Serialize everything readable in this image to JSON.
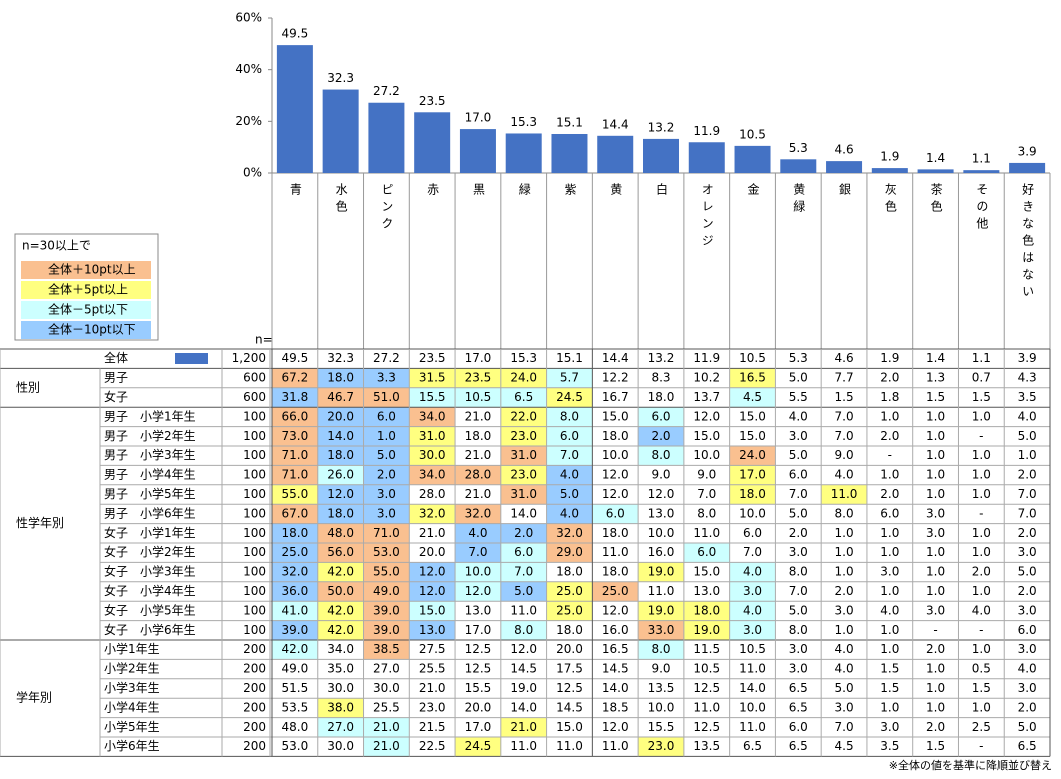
{
  "chart_data": {
    "type": "bar",
    "categories": [
      "青",
      "水色",
      "ピンク",
      "赤",
      "黒",
      "緑",
      "紫",
      "黄",
      "白",
      "オレンジ",
      "金",
      "黄緑",
      "銀",
      "灰色",
      "茶色",
      "その他",
      "好きな色はない"
    ],
    "values": [
      49.5,
      32.3,
      27.2,
      23.5,
      17.0,
      15.3,
      15.1,
      14.4,
      13.2,
      11.9,
      10.5,
      5.3,
      4.6,
      1.9,
      1.4,
      1.1,
      3.9
    ],
    "value_labels": [
      "49.5",
      "32.3",
      "27.2",
      "23.5",
      "17.0",
      "15.3",
      "15.1",
      "14.4",
      "13.2",
      "11.9",
      "10.5",
      "5.3",
      "4.6",
      "1.9",
      "1.4",
      "1.1",
      "3.9"
    ],
    "color": "#4472c4",
    "ylim": [
      0,
      60
    ],
    "yticks": [
      {
        "value": 0,
        "label": "0%"
      },
      {
        "value": 20,
        "label": "20%"
      },
      {
        "value": 40,
        "label": "40%"
      },
      {
        "value": 60,
        "label": "60%"
      }
    ]
  },
  "legend": {
    "title": "n=30以上で",
    "items": [
      {
        "label": "全体＋10pt以上",
        "color": "#fac090"
      },
      {
        "label": "全体＋5pt以上",
        "color": "#ffff80"
      },
      {
        "label": "全体－5pt以下",
        "color": "#ccffff"
      },
      {
        "label": "全体－10pt以下",
        "color": "#99ccff"
      }
    ]
  },
  "table": {
    "n_header": "n=",
    "overall": {
      "label": "全体",
      "n": "1,200",
      "cells": [
        "49.5",
        "32.3",
        "27.2",
        "23.5",
        "17.0",
        "15.3",
        "15.1",
        "14.4",
        "13.2",
        "11.9",
        "10.5",
        "5.3",
        "4.6",
        "1.9",
        "1.4",
        "1.1",
        "3.9"
      ]
    },
    "groups": [
      {
        "label": "性別",
        "rows": [
          {
            "label": "男子",
            "n": "600",
            "cells": [
              "67.2",
              "18.0",
              "3.3",
              "31.5",
              "23.5",
              "24.0",
              "5.7",
              "12.2",
              "8.3",
              "10.2",
              "16.5",
              "5.0",
              "7.7",
              "2.0",
              "1.3",
              "0.7",
              "4.3"
            ],
            "levels": [
              0,
              3,
              3,
              1,
              1,
              1,
              2,
              null,
              null,
              null,
              1,
              null,
              null,
              null,
              null,
              null,
              null
            ]
          },
          {
            "label": "女子",
            "n": "600",
            "cells": [
              "31.8",
              "46.7",
              "51.0",
              "15.5",
              "10.5",
              "6.5",
              "24.5",
              "16.7",
              "18.0",
              "13.7",
              "4.5",
              "5.5",
              "1.5",
              "1.8",
              "1.5",
              "1.5",
              "3.5"
            ],
            "levels": [
              3,
              0,
              0,
              2,
              2,
              2,
              1,
              null,
              null,
              null,
              2,
              null,
              null,
              null,
              null,
              null,
              null
            ]
          }
        ]
      },
      {
        "label": "性学年別",
        "rows": [
          {
            "label": "男子　小学1年生",
            "n": "100",
            "cells": [
              "66.0",
              "20.0",
              "6.0",
              "34.0",
              "21.0",
              "22.0",
              "8.0",
              "15.0",
              "6.0",
              "12.0",
              "15.0",
              "4.0",
              "7.0",
              "1.0",
              "1.0",
              "1.0",
              "4.0"
            ],
            "levels": [
              0,
              3,
              3,
              0,
              null,
              1,
              2,
              null,
              2,
              null,
              null,
              null,
              null,
              null,
              null,
              null,
              null
            ]
          },
          {
            "label": "男子　小学2年生",
            "n": "100",
            "cells": [
              "73.0",
              "14.0",
              "1.0",
              "31.0",
              "18.0",
              "23.0",
              "6.0",
              "18.0",
              "2.0",
              "15.0",
              "15.0",
              "3.0",
              "7.0",
              "2.0",
              "1.0",
              "-",
              "5.0"
            ],
            "levels": [
              0,
              3,
              3,
              1,
              null,
              1,
              2,
              null,
              3,
              null,
              null,
              null,
              null,
              null,
              null,
              null,
              null
            ]
          },
          {
            "label": "男子　小学3年生",
            "n": "100",
            "cells": [
              "71.0",
              "18.0",
              "5.0",
              "30.0",
              "21.0",
              "31.0",
              "7.0",
              "10.0",
              "8.0",
              "10.0",
              "24.0",
              "5.0",
              "9.0",
              "-",
              "1.0",
              "1.0",
              "1.0"
            ],
            "levels": [
              0,
              3,
              3,
              1,
              null,
              0,
              2,
              null,
              2,
              null,
              0,
              null,
              null,
              null,
              null,
              null,
              null
            ]
          },
          {
            "label": "男子　小学4年生",
            "n": "100",
            "cells": [
              "71.0",
              "26.0",
              "2.0",
              "34.0",
              "28.0",
              "23.0",
              "4.0",
              "12.0",
              "9.0",
              "9.0",
              "17.0",
              "6.0",
              "4.0",
              "1.0",
              "1.0",
              "1.0",
              "2.0"
            ],
            "levels": [
              0,
              2,
              3,
              0,
              0,
              1,
              3,
              null,
              null,
              null,
              1,
              null,
              null,
              null,
              null,
              null,
              null
            ]
          },
          {
            "label": "男子　小学5年生",
            "n": "100",
            "cells": [
              "55.0",
              "12.0",
              "3.0",
              "28.0",
              "21.0",
              "31.0",
              "5.0",
              "12.0",
              "12.0",
              "7.0",
              "18.0",
              "7.0",
              "11.0",
              "2.0",
              "1.0",
              "1.0",
              "7.0"
            ],
            "levels": [
              1,
              3,
              3,
              null,
              null,
              0,
              3,
              null,
              null,
              null,
              1,
              null,
              1,
              null,
              null,
              null,
              null
            ]
          },
          {
            "label": "男子　小学6年生",
            "n": "100",
            "cells": [
              "67.0",
              "18.0",
              "3.0",
              "32.0",
              "32.0",
              "14.0",
              "4.0",
              "6.0",
              "13.0",
              "8.0",
              "10.0",
              "5.0",
              "8.0",
              "6.0",
              "3.0",
              "-",
              "7.0"
            ],
            "levels": [
              0,
              3,
              3,
              1,
              0,
              null,
              3,
              2,
              null,
              null,
              null,
              null,
              null,
              null,
              null,
              null,
              null
            ]
          },
          {
            "label": "女子　小学1年生",
            "n": "100",
            "cells": [
              "18.0",
              "48.0",
              "71.0",
              "21.0",
              "4.0",
              "2.0",
              "32.0",
              "18.0",
              "10.0",
              "11.0",
              "6.0",
              "2.0",
              "1.0",
              "1.0",
              "3.0",
              "1.0",
              "2.0"
            ],
            "levels": [
              3,
              0,
              0,
              null,
              3,
              3,
              0,
              null,
              null,
              null,
              null,
              null,
              null,
              null,
              null,
              null,
              null
            ]
          },
          {
            "label": "女子　小学2年生",
            "n": "100",
            "cells": [
              "25.0",
              "56.0",
              "53.0",
              "20.0",
              "7.0",
              "6.0",
              "29.0",
              "11.0",
              "16.0",
              "6.0",
              "7.0",
              "3.0",
              "1.0",
              "1.0",
              "1.0",
              "1.0",
              "3.0"
            ],
            "levels": [
              3,
              0,
              0,
              null,
              3,
              2,
              0,
              null,
              null,
              2,
              null,
              null,
              null,
              null,
              null,
              null,
              null
            ]
          },
          {
            "label": "女子　小学3年生",
            "n": "100",
            "cells": [
              "32.0",
              "42.0",
              "55.0",
              "12.0",
              "10.0",
              "7.0",
              "18.0",
              "18.0",
              "19.0",
              "15.0",
              "4.0",
              "8.0",
              "1.0",
              "3.0",
              "1.0",
              "2.0",
              "5.0"
            ],
            "levels": [
              3,
              1,
              0,
              3,
              2,
              2,
              null,
              null,
              1,
              null,
              2,
              null,
              null,
              null,
              null,
              null,
              null
            ]
          },
          {
            "label": "女子　小学4年生",
            "n": "100",
            "cells": [
              "36.0",
              "50.0",
              "49.0",
              "12.0",
              "12.0",
              "5.0",
              "25.0",
              "25.0",
              "11.0",
              "13.0",
              "3.0",
              "7.0",
              "2.0",
              "1.0",
              "1.0",
              "1.0",
              "2.0"
            ],
            "levels": [
              3,
              0,
              0,
              3,
              2,
              3,
              1,
              0,
              null,
              null,
              2,
              null,
              null,
              null,
              null,
              null,
              null
            ]
          },
          {
            "label": "女子　小学5年生",
            "n": "100",
            "cells": [
              "41.0",
              "42.0",
              "39.0",
              "15.0",
              "13.0",
              "11.0",
              "25.0",
              "12.0",
              "19.0",
              "18.0",
              "4.0",
              "5.0",
              "3.0",
              "4.0",
              "3.0",
              "4.0",
              "3.0"
            ],
            "levels": [
              2,
              1,
              0,
              2,
              null,
              null,
              1,
              null,
              1,
              1,
              2,
              null,
              null,
              null,
              null,
              null,
              null
            ]
          },
          {
            "label": "女子　小学6年生",
            "n": "100",
            "cells": [
              "39.0",
              "42.0",
              "39.0",
              "13.0",
              "17.0",
              "8.0",
              "18.0",
              "16.0",
              "33.0",
              "19.0",
              "3.0",
              "8.0",
              "1.0",
              "1.0",
              "-",
              "-",
              "6.0"
            ],
            "levels": [
              3,
              1,
              0,
              3,
              null,
              2,
              null,
              null,
              0,
              1,
              2,
              null,
              null,
              null,
              null,
              null,
              null
            ]
          }
        ]
      },
      {
        "label": "学年別",
        "rows": [
          {
            "label": "小学1年生",
            "n": "200",
            "cells": [
              "42.0",
              "34.0",
              "38.5",
              "27.5",
              "12.5",
              "12.0",
              "20.0",
              "16.5",
              "8.0",
              "11.5",
              "10.5",
              "3.0",
              "4.0",
              "1.0",
              "2.0",
              "1.0",
              "3.0"
            ],
            "levels": [
              2,
              null,
              0,
              null,
              null,
              null,
              null,
              null,
              2,
              null,
              null,
              null,
              null,
              null,
              null,
              null,
              null
            ]
          },
          {
            "label": "小学2年生",
            "n": "200",
            "cells": [
              "49.0",
              "35.0",
              "27.0",
              "25.5",
              "12.5",
              "14.5",
              "17.5",
              "14.5",
              "9.0",
              "10.5",
              "11.0",
              "3.0",
              "4.0",
              "1.5",
              "1.0",
              "0.5",
              "4.0"
            ],
            "levels": [
              null,
              null,
              null,
              null,
              null,
              null,
              null,
              null,
              null,
              null,
              null,
              null,
              null,
              null,
              null,
              null,
              null
            ]
          },
          {
            "label": "小学3年生",
            "n": "200",
            "cells": [
              "51.5",
              "30.0",
              "30.0",
              "21.0",
              "15.5",
              "19.0",
              "12.5",
              "14.0",
              "13.5",
              "12.5",
              "14.0",
              "6.5",
              "5.0",
              "1.5",
              "1.0",
              "1.5",
              "3.0"
            ],
            "levels": [
              null,
              null,
              null,
              null,
              null,
              null,
              null,
              null,
              null,
              null,
              null,
              null,
              null,
              null,
              null,
              null,
              null
            ]
          },
          {
            "label": "小学4年生",
            "n": "200",
            "cells": [
              "53.5",
              "38.0",
              "25.5",
              "23.0",
              "20.0",
              "14.0",
              "14.5",
              "18.5",
              "10.0",
              "11.0",
              "10.0",
              "6.5",
              "3.0",
              "1.0",
              "1.0",
              "1.0",
              "2.0"
            ],
            "levels": [
              null,
              1,
              null,
              null,
              null,
              null,
              null,
              null,
              null,
              null,
              null,
              null,
              null,
              null,
              null,
              null,
              null
            ]
          },
          {
            "label": "小学5年生",
            "n": "200",
            "cells": [
              "48.0",
              "27.0",
              "21.0",
              "21.5",
              "17.0",
              "21.0",
              "15.0",
              "12.0",
              "15.5",
              "12.5",
              "11.0",
              "6.0",
              "7.0",
              "3.0",
              "2.0",
              "2.5",
              "5.0"
            ],
            "levels": [
              null,
              2,
              2,
              null,
              null,
              1,
              null,
              null,
              null,
              null,
              null,
              null,
              null,
              null,
              null,
              null,
              null
            ]
          },
          {
            "label": "小学6年生",
            "n": "200",
            "cells": [
              "53.0",
              "30.0",
              "21.0",
              "22.5",
              "24.5",
              "11.0",
              "11.0",
              "11.0",
              "23.0",
              "13.5",
              "6.5",
              "6.5",
              "4.5",
              "3.5",
              "1.5",
              "-",
              "6.5"
            ],
            "levels": [
              null,
              null,
              2,
              null,
              1,
              null,
              null,
              null,
              1,
              null,
              null,
              null,
              null,
              null,
              null,
              null,
              null
            ]
          }
        ]
      }
    ]
  },
  "footnote": "※全体の値を基準に降順並び替え"
}
